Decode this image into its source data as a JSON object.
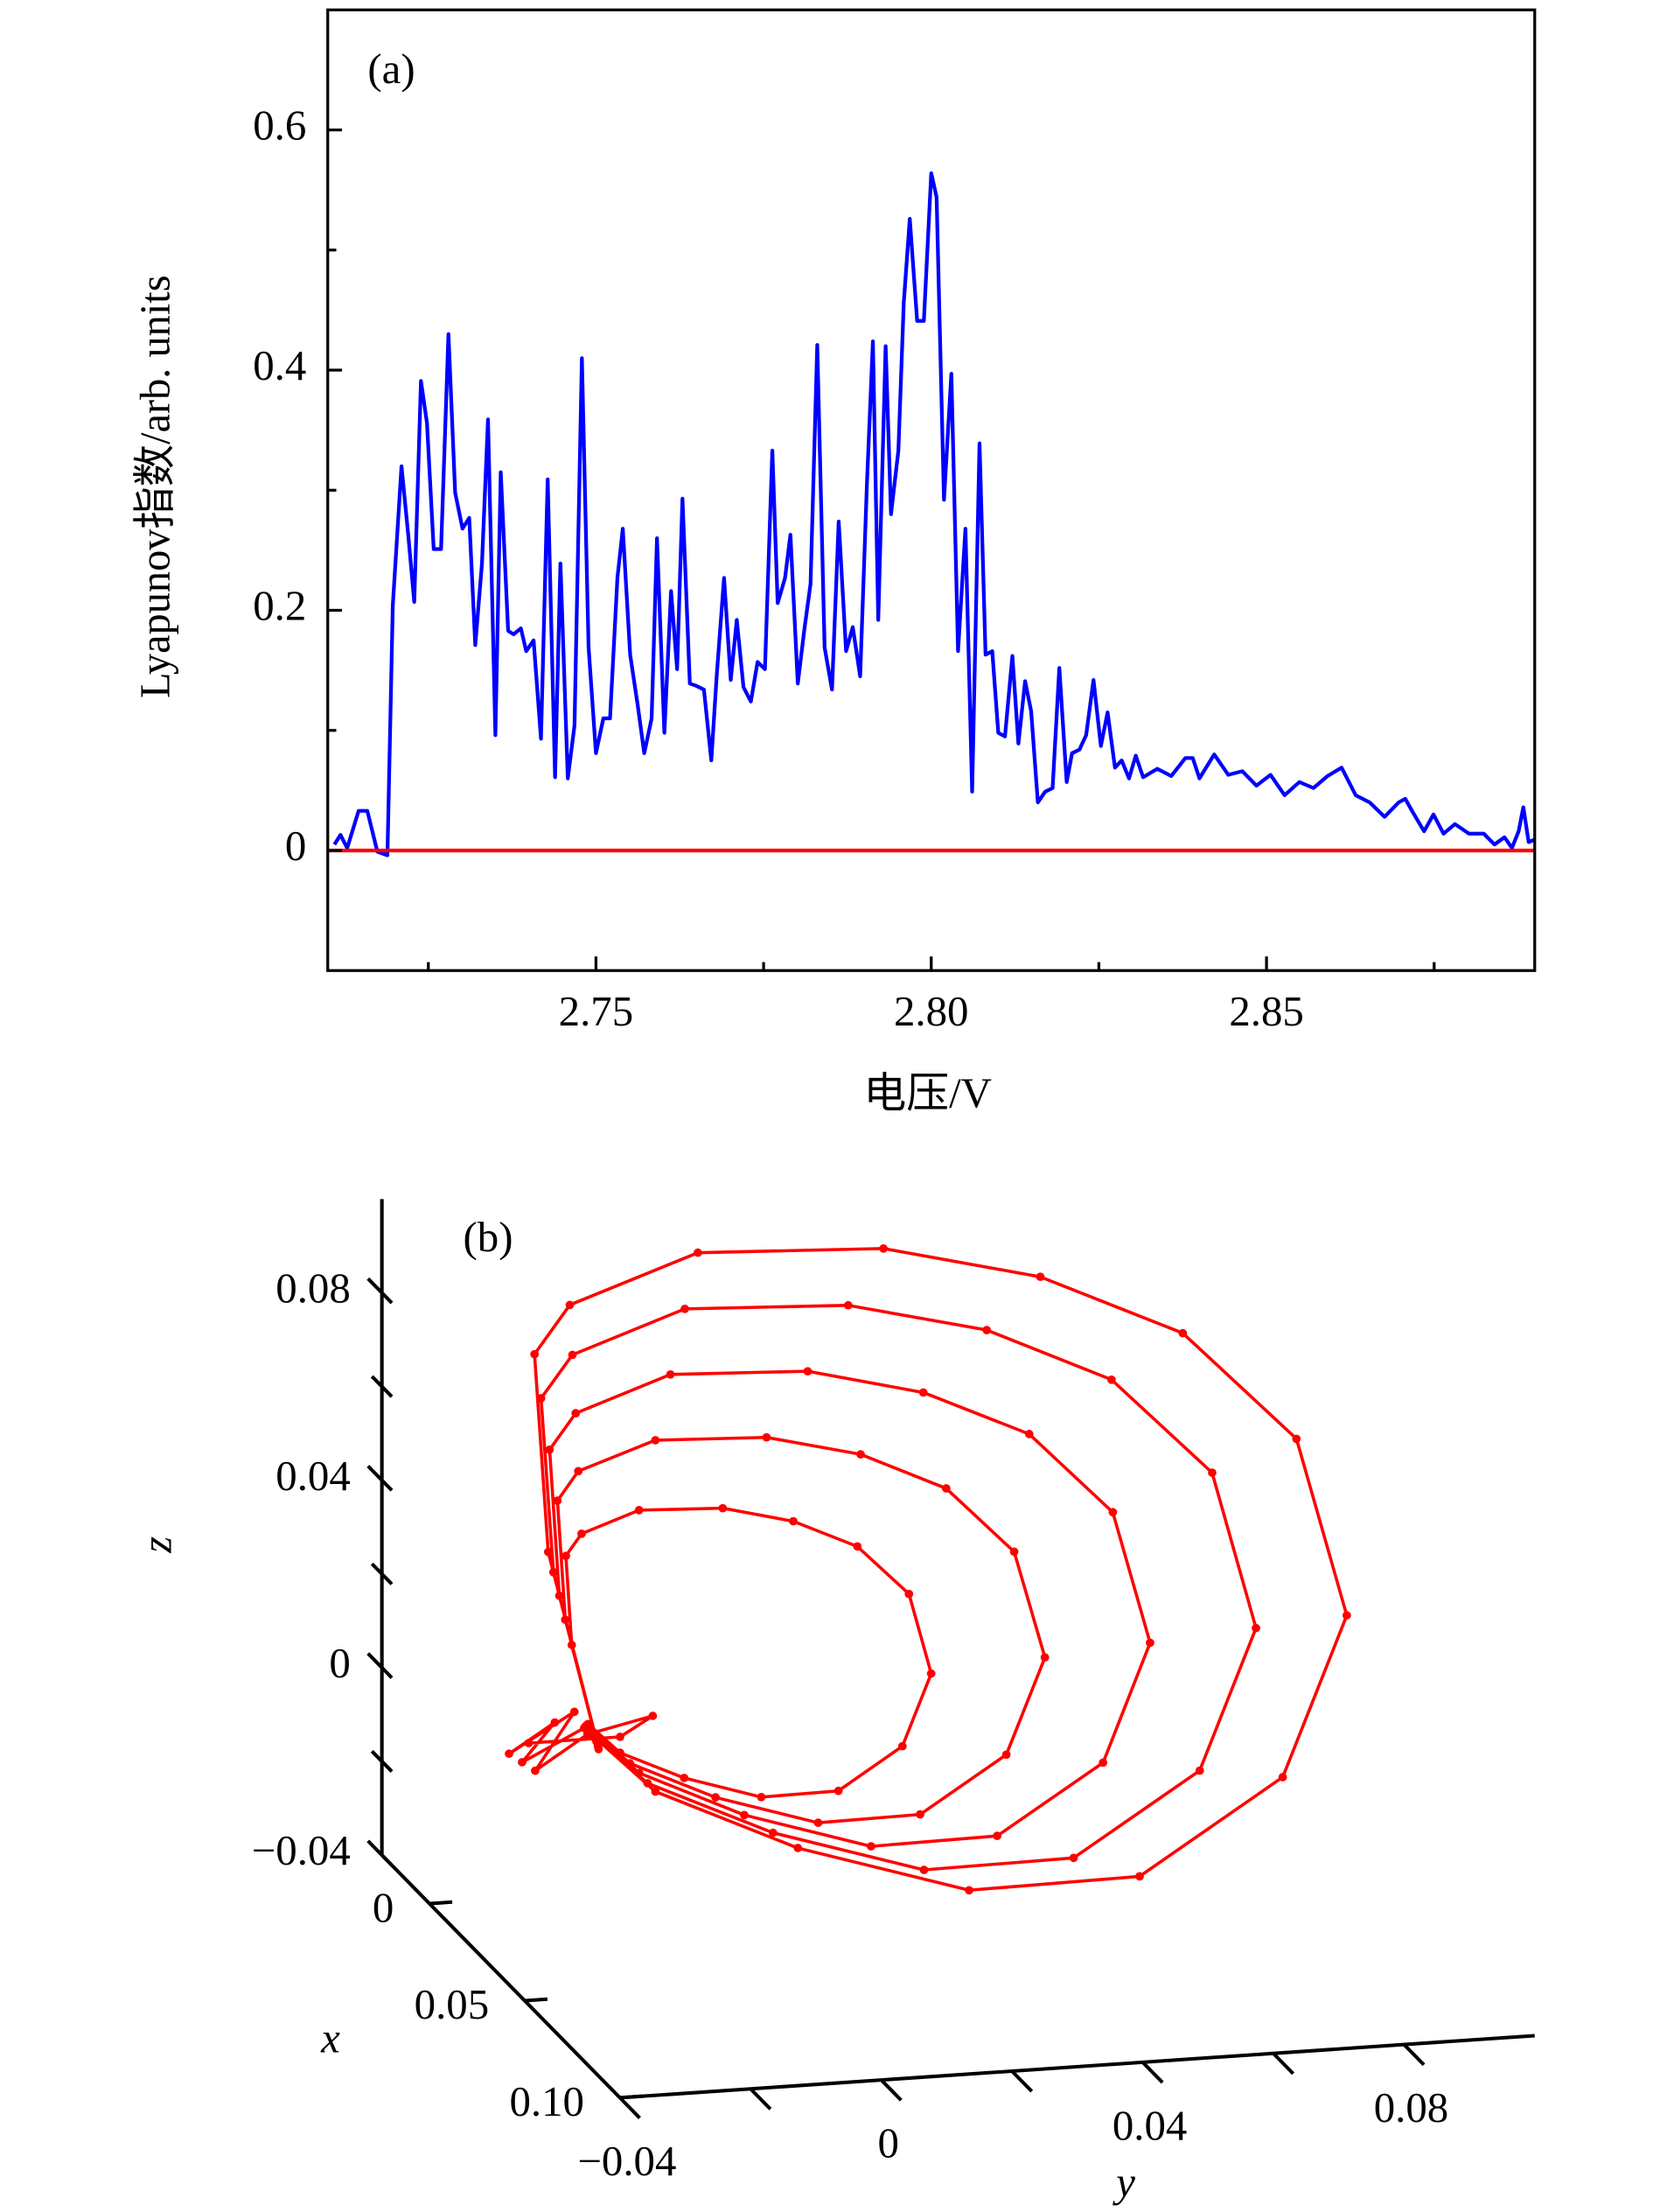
{
  "chart_data": [
    {
      "type": "line",
      "annotation": "(a)",
      "xlabel": "电压/V",
      "ylabel": "Lyapunov指数/arb. units",
      "xlim": [
        2.71,
        2.89
      ],
      "ylim": [
        -0.1,
        0.7
      ],
      "xticks": [
        2.75,
        {
          "value": 2.8,
          "label": "2.80"
        },
        2.85
      ],
      "yticks": [
        0,
        0.2,
        0.4,
        0.6
      ],
      "xticks_minor": [
        2.725,
        2.775,
        2.825,
        2.875
      ],
      "yticks_minor": [
        0.1,
        0.3,
        0.5
      ],
      "series": [
        {
          "color": "#0000ff",
          "x": [
            2.711,
            2.7119,
            2.7129,
            2.7146,
            2.7159,
            2.7174,
            2.7189,
            2.7197,
            2.721,
            2.722,
            2.7229,
            2.7239,
            2.7248,
            2.7258,
            2.7269,
            2.728,
            2.729,
            2.7301,
            2.7311,
            2.732,
            2.733,
            2.7339,
            2.735,
            2.7358,
            2.7369,
            2.7377,
            2.7388,
            2.7396,
            2.7407,
            2.7418,
            2.7428,
            2.7439,
            2.7447,
            2.7458,
            2.7468,
            2.7479,
            2.7489,
            2.75,
            2.7511,
            2.7521,
            2.7532,
            2.754,
            2.7551,
            2.7562,
            2.7572,
            2.7583,
            2.7591,
            2.7602,
            2.7612,
            2.7621,
            2.7629,
            2.764,
            2.765,
            2.7661,
            2.7672,
            2.768,
            2.7691,
            2.7701,
            2.771,
            2.772,
            2.7731,
            2.7741,
            2.7752,
            2.7763,
            2.7771,
            2.7782,
            2.779,
            2.7801,
            2.7811,
            2.782,
            2.783,
            2.7841,
            2.7852,
            2.7862,
            2.7873,
            2.7883,
            2.7894,
            2.7904,
            2.7913,
            2.7921,
            2.7932,
            2.794,
            2.7951,
            2.7959,
            2.7968,
            2.7979,
            2.7989,
            2.8,
            2.8008,
            2.8019,
            2.803,
            2.804,
            2.8051,
            2.8061,
            2.8072,
            2.8081,
            2.8091,
            2.81,
            2.811,
            2.8121,
            2.813,
            2.814,
            2.8149,
            2.8159,
            2.817,
            2.8181,
            2.8191,
            2.8202,
            2.821,
            2.8221,
            2.8231,
            2.8242,
            2.8253,
            2.8263,
            2.8274,
            2.8284,
            2.8295,
            2.8305,
            2.8316,
            2.8337,
            2.8358,
            2.8379,
            2.839,
            2.84,
            2.8422,
            2.8443,
            2.8464,
            2.8485,
            2.8506,
            2.8527,
            2.8549,
            2.857,
            2.8591,
            2.8612,
            2.8633,
            2.8654,
            2.8676,
            2.8697,
            2.8707,
            2.8718,
            2.8735,
            2.8749,
            2.8764,
            2.8781,
            2.8802,
            2.8824,
            2.884,
            2.8855,
            2.8866,
            2.8876,
            2.8883,
            2.8891,
            2.89
          ],
          "values": [
            0.005,
            0.013,
            0.002,
            0.033,
            0.033,
            -0.001,
            -0.004,
            0.204,
            0.32,
            0.263,
            0.207,
            0.391,
            0.356,
            0.251,
            0.251,
            0.43,
            0.298,
            0.268,
            0.277,
            0.171,
            0.239,
            0.359,
            0.096,
            0.315,
            0.183,
            0.18,
            0.185,
            0.166,
            0.175,
            0.093,
            0.309,
            0.061,
            0.239,
            0.06,
            0.104,
            0.41,
            0.169,
            0.081,
            0.11,
            0.11,
            0.227,
            0.268,
            0.163,
            0.122,
            0.081,
            0.11,
            0.26,
            0.098,
            0.216,
            0.151,
            0.293,
            0.139,
            0.137,
            0.134,
            0.075,
            0.145,
            0.227,
            0.142,
            0.192,
            0.136,
            0.124,
            0.157,
            0.151,
            0.333,
            0.206,
            0.227,
            0.263,
            0.139,
            0.185,
            0.222,
            0.421,
            0.169,
            0.134,
            0.274,
            0.166,
            0.186,
            0.145,
            0.304,
            0.424,
            0.192,
            0.42,
            0.28,
            0.333,
            0.456,
            0.526,
            0.441,
            0.441,
            0.564,
            0.544,
            0.292,
            0.397,
            0.166,
            0.268,
            0.049,
            0.339,
            0.163,
            0.166,
            0.098,
            0.095,
            0.162,
            0.089,
            0.141,
            0.116,
            0.04,
            0.049,
            0.052,
            0.152,
            0.057,
            0.081,
            0.084,
            0.096,
            0.142,
            0.087,
            0.115,
            0.069,
            0.075,
            0.06,
            0.079,
            0.061,
            0.068,
            0.062,
            0.077,
            0.077,
            0.06,
            0.08,
            0.063,
            0.066,
            0.054,
            0.063,
            0.046,
            0.057,
            0.052,
            0.062,
            0.069,
            0.046,
            0.04,
            0.028,
            0.04,
            0.043,
            0.032,
            0.016,
            0.03,
            0.014,
            0.022,
            0.014,
            0.014,
            0.005,
            0.011,
            0.002,
            0.016,
            0.036,
            0.007,
            0.009
          ]
        },
        {
          "color": "#ff0000",
          "x": [
            2.71,
            2.89
          ],
          "values": [
            0,
            0
          ]
        }
      ]
    },
    {
      "type": "line3d",
      "annotation": "(b)",
      "xlabel": "x",
      "ylabel": "y",
      "zlabel": "z",
      "xlim": [
        -0.025,
        0.1
      ],
      "ylim": [
        -0.04,
        0.1
      ],
      "zlim": [
        -0.04,
        0.1
      ],
      "xticks": [
        0,
        0.05,
        {
          "value": 0.1,
          "label": "0.10"
        }
      ],
      "yticks": [
        {
          "value": -0.04,
          "label": "−0.04"
        },
        0,
        0.04,
        0.08
      ],
      "zticks": [
        {
          "value": -0.04,
          "label": "−0.04"
        },
        0,
        0.04,
        0.08
      ],
      "yticks_minor": [
        -0.02,
        0.02,
        0.06
      ],
      "zticks_minor": [
        -0.02,
        0.02,
        0.06
      ],
      "color": "#ff0000",
      "x": [
        -0.02,
        -0.02,
        -0.02,
        -0.02,
        -0.02,
        -0.02,
        -0.02,
        -0.02,
        -0.02,
        -0.02,
        -0.02,
        -0.02,
        -0.02,
        -0.02,
        -0.02,
        -0.02,
        -0.02,
        -0.02,
        -0.02,
        -0.02,
        -0.02,
        -0.02,
        -0.02,
        -0.02,
        -0.02,
        -0.02,
        -0.02,
        -0.02,
        -0.02,
        -0.02,
        -0.02,
        -0.02,
        -0.02,
        -0.02,
        -0.02,
        -0.02,
        -0.02,
        -0.02,
        -0.02,
        -0.02,
        -0.02,
        -0.02,
        -0.02,
        -0.02,
        -0.02,
        -0.02,
        -0.02,
        -0.02,
        -0.02,
        -0.02,
        -0.02,
        -0.02,
        -0.02,
        -0.02,
        -0.02,
        -0.02,
        -0.02,
        -0.02,
        -0.02,
        -0.02,
        -0.02,
        -0.02,
        -0.02,
        -0.02,
        -0.02,
        -0.02,
        -0.02,
        -0.02,
        -0.02,
        -0.02,
        -0.02,
        -0.02,
        -0.02,
        -0.02,
        -0.02,
        -0.02,
        -0.02,
        -0.02,
        -0.02,
        -0.02,
        -0.02,
        -0.02,
        -0.02,
        -0.02,
        -0.02,
        -0.02,
        -0.02,
        -0.02,
        -0.02
      ],
      "y": [
        -0.0089,
        -0.0124,
        -0.0133,
        -0.0109,
        -0.0021,
        0.0107,
        0.0215,
        0.0313,
        0.0392,
        0.0426,
        0.0382,
        0.0284,
        0.0166,
        0.0048,
        -0.005,
        -0.0099,
        -0.0087,
        -0.0134,
        -0.0146,
        -0.0114,
        0.0004,
        0.0174,
        0.0318,
        0.0449,
        0.0553,
        0.06,
        0.0541,
        0.0409,
        0.0253,
        0.0096,
        -0.0035,
        -0.0101,
        -0.0086,
        -0.0143,
        -0.0158,
        -0.0118,
        0.0027,
        0.0237,
        0.0414,
        0.0576,
        0.0704,
        0.0761,
        0.0689,
        0.0527,
        0.0334,
        0.014,
        -0.0021,
        -0.0102,
        -0.0084,
        -0.0152,
        -0.0171,
        -0.0123,
        0.0049,
        0.0299,
        0.0511,
        0.0702,
        0.0856,
        0.0923,
        0.0837,
        0.0644,
        0.0415,
        0.0184,
        -0.0008,
        -0.0104,
        -0.0083,
        -0.016,
        -0.0181,
        -0.0127,
        0.0069,
        0.0353,
        0.0593,
        0.0811,
        0.0985,
        0.1062,
        0.0964,
        0.0745,
        0.0484,
        0.0222,
        0.0004,
        -0.0105,
        -0.02,
        -0.015,
        -0.022,
        -0.012,
        -0.018,
        -0.01,
        0,
        -0.005,
        -0.019
      ],
      "z": [
        -0.0149,
        0.0043,
        0.0234,
        0.0279,
        0.0321,
        0.0313,
        0.0275,
        0.0212,
        0.0103,
        -0.007,
        -0.0221,
        -0.0307,
        -0.0309,
        -0.0257,
        -0.0194,
        -0.0128,
        -0.0159,
        0.0098,
        0.0353,
        0.0413,
        0.0468,
        0.0458,
        0.0408,
        0.0323,
        0.0178,
        -0.0052,
        -0.0254,
        -0.0369,
        -0.0372,
        -0.0303,
        -0.0218,
        -0.013,
        -0.0167,
        0.015,
        0.0463,
        0.0537,
        0.0606,
        0.0593,
        0.0531,
        0.0427,
        0.0248,
        -0.0036,
        -0.0285,
        -0.0426,
        -0.043,
        -0.0345,
        -0.024,
        -0.0132,
        -0.0176,
        0.0201,
        0.0574,
        0.0662,
        0.0744,
        0.0728,
        0.0655,
        0.0531,
        0.0318,
        -0.002,
        -0.0316,
        -0.0484,
        -0.0488,
        -0.0387,
        -0.0263,
        -0.0134,
        -0.0183,
        0.0245,
        0.0669,
        0.0769,
        0.0862,
        0.0844,
        0.0761,
        0.062,
        0.0378,
        -0.0006,
        -0.0342,
        -0.0533,
        -0.0538,
        -0.0423,
        -0.0282,
        -0.0136,
        -0.02,
        -0.012,
        -0.018,
        -0.01,
        -0.022,
        -0.015,
        -0.012,
        -0.016,
        -0.016
      ]
    }
  ]
}
